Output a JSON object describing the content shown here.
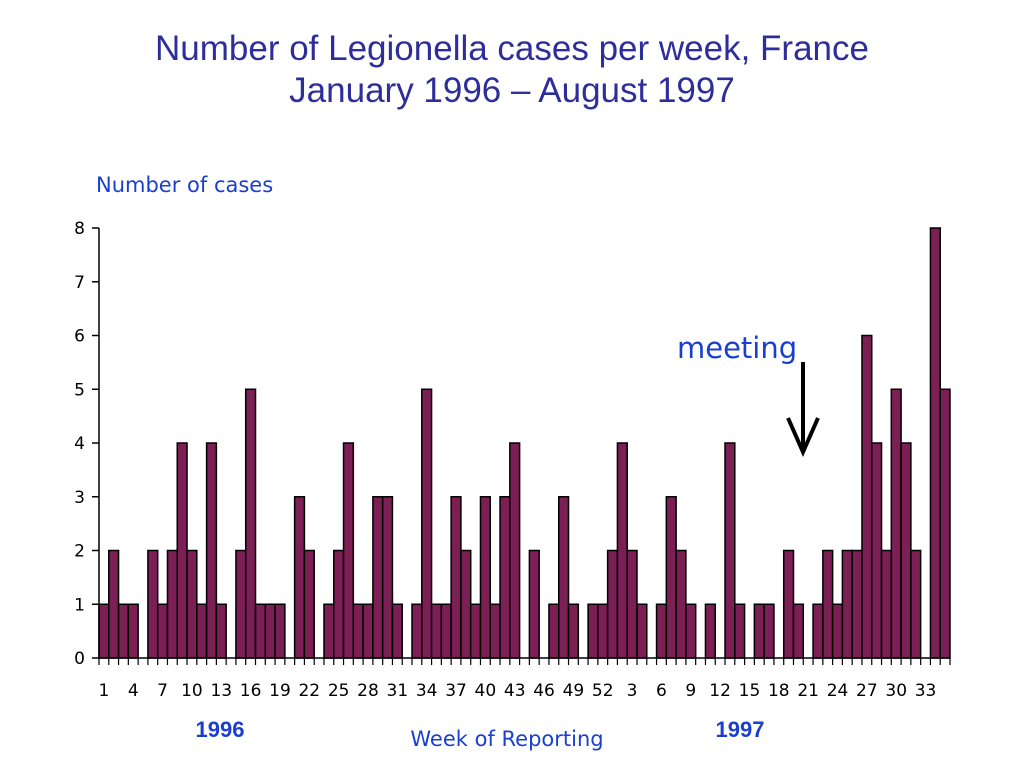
{
  "chart_data": {
    "type": "bar",
    "title": "Number of Legionella cases per week, France",
    "subtitle": "January 1996 – August 1997",
    "ylabel": "Number of cases",
    "xlabel": "Week of Reporting",
    "ylim": [
      0,
      8
    ],
    "yticks": [
      "0",
      "1",
      "2",
      "3",
      "4",
      "5",
      "6",
      "7",
      "8"
    ],
    "xtick_labels": [
      "1",
      "4",
      "7",
      "10",
      "13",
      "16",
      "19",
      "22",
      "25",
      "28",
      "31",
      "34",
      "37",
      "40",
      "43",
      "46",
      "49",
      "52",
      "3",
      "6",
      "9",
      "12",
      "15",
      "18",
      "21",
      "24",
      "27",
      "30",
      "33"
    ],
    "year_labels": [
      "1996",
      "1997"
    ],
    "values": [
      1,
      2,
      1,
      1,
      0,
      2,
      1,
      2,
      4,
      2,
      1,
      4,
      1,
      0,
      2,
      5,
      1,
      1,
      1,
      0,
      3,
      2,
      0,
      1,
      2,
      4,
      1,
      1,
      3,
      3,
      1,
      0,
      1,
      5,
      1,
      1,
      3,
      2,
      1,
      3,
      1,
      3,
      4,
      0,
      2,
      0,
      1,
      3,
      1,
      0,
      1,
      1,
      2,
      4,
      2,
      1,
      0,
      1,
      3,
      2,
      1,
      0,
      1,
      0,
      4,
      1,
      0,
      1,
      1,
      0,
      2,
      1,
      0,
      1,
      2,
      1,
      2,
      2,
      6,
      4,
      2,
      5,
      4,
      2,
      0,
      8,
      5
    ],
    "annotation": {
      "text": "meeting"
    },
    "grid": false,
    "colors": {
      "bar": "#7b1f55",
      "bar_edge": "#000000",
      "text": "#1a3fd0",
      "title": "#2e2e9a"
    }
  }
}
